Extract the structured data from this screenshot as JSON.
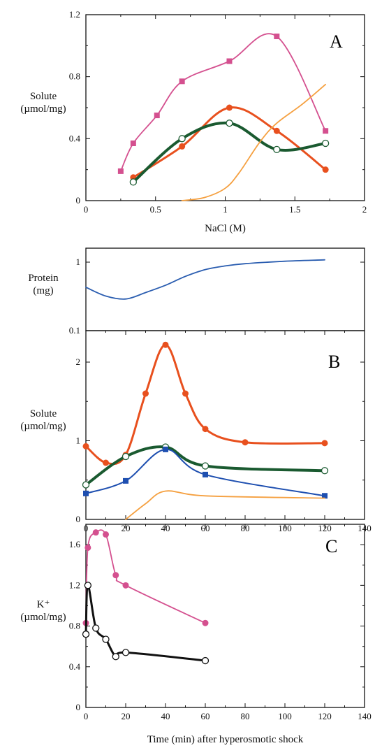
{
  "chart_data": [
    {
      "panel": "A",
      "type": "line",
      "ylabel": [
        "Solute",
        "(µmol/mg)"
      ],
      "xlabel": "NaCl (M)",
      "xlim": [
        0,
        2
      ],
      "ylim": [
        0,
        1.2
      ],
      "xticks": [
        "0",
        "0.5",
        "1",
        "1.5",
        "2"
      ],
      "yticks": [
        "0",
        "0.4",
        "0.8",
        "1.2"
      ],
      "series": [
        {
          "color": "#d4508f",
          "marker": "square",
          "width": 1.8,
          "x": [
            0.25,
            0.34,
            0.51,
            0.69,
            1.03,
            1.37,
            1.72
          ],
          "y": [
            0.19,
            0.37,
            0.55,
            0.77,
            0.9,
            1.06,
            0.45
          ]
        },
        {
          "color": "#e8501e",
          "marker": "circle",
          "width": 3,
          "x": [
            0.34,
            0.69,
            1.03,
            1.37,
            1.72
          ],
          "y": [
            0.15,
            0.35,
            0.6,
            0.45,
            0.2
          ]
        },
        {
          "color": "#1a5a30",
          "marker": "open-circle",
          "width": 4,
          "x": [
            0.34,
            0.69,
            1.03,
            1.37,
            1.72
          ],
          "y": [
            0.12,
            0.4,
            0.5,
            0.33,
            0.37
          ]
        },
        {
          "color": "#f5a040",
          "marker": "none",
          "width": 1.8,
          "x": [
            0.69,
            0.85,
            1.0,
            1.1,
            1.25,
            1.37,
            1.55,
            1.72
          ],
          "y": [
            0.0,
            0.02,
            0.08,
            0.18,
            0.38,
            0.5,
            0.62,
            0.75
          ]
        }
      ]
    },
    {
      "panel": "Protein",
      "type": "line",
      "ylabel": [
        "Protein",
        "(mg)"
      ],
      "yscale": "log",
      "ylim": [
        0.1,
        1.6
      ],
      "xlim": [
        0,
        140
      ],
      "yticks": [
        "0.1",
        "1"
      ],
      "series": [
        {
          "color": "#2a5db0",
          "marker": "none",
          "width": 1.8,
          "x": [
            0,
            10,
            20,
            30,
            40,
            50,
            60,
            70,
            80,
            100,
            120
          ],
          "y": [
            0.43,
            0.32,
            0.29,
            0.36,
            0.46,
            0.62,
            0.78,
            0.88,
            0.95,
            1.03,
            1.08
          ]
        }
      ]
    },
    {
      "panel": "B",
      "type": "line",
      "ylabel": [
        "Solute",
        "(µmol/mg)"
      ],
      "xlim": [
        0,
        140
      ],
      "ylim": [
        0,
        2.4
      ],
      "xticks": [
        "0",
        "20",
        "40",
        "60",
        "80",
        "100",
        "120",
        "140"
      ],
      "yticks": [
        "0",
        "1",
        "2"
      ],
      "series": [
        {
          "color": "#e8501e",
          "marker": "circle",
          "width": 3,
          "x": [
            0,
            10,
            20,
            30,
            40,
            50,
            60,
            80,
            120
          ],
          "y": [
            0.93,
            0.72,
            0.82,
            1.6,
            2.22,
            1.6,
            1.15,
            0.98,
            0.97
          ]
        },
        {
          "color": "#1a5a30",
          "marker": "open-circle",
          "width": 4,
          "x": [
            0,
            20,
            40,
            60,
            120
          ],
          "y": [
            0.44,
            0.8,
            0.92,
            0.68,
            0.62
          ]
        },
        {
          "color": "#1e4fb0",
          "marker": "square",
          "width": 2,
          "x": [
            0,
            20,
            40,
            60,
            120
          ],
          "y": [
            0.33,
            0.49,
            0.89,
            0.57,
            0.3
          ]
        },
        {
          "color": "#f5a040",
          "marker": "none",
          "width": 1.8,
          "x": [
            20,
            30,
            40,
            60,
            120
          ],
          "y": [
            0.0,
            0.2,
            0.36,
            0.3,
            0.27
          ]
        }
      ]
    },
    {
      "panel": "C",
      "type": "line",
      "ylabel": [
        "K⁺",
        "(µmol/mg)"
      ],
      "xlabel": "Time (min) after hyperosmotic shock",
      "xlim": [
        0,
        140
      ],
      "ylim": [
        0,
        1.8
      ],
      "xticks": [
        "0",
        "20",
        "40",
        "60",
        "80",
        "100",
        "120",
        "140"
      ],
      "yticks": [
        "0",
        "0.4",
        "0.8",
        "1.2",
        "1.6"
      ],
      "series": [
        {
          "color": "#d4508f",
          "marker": "circle",
          "width": 1.8,
          "x": [
            0,
            1,
            5,
            10,
            15,
            20,
            60
          ],
          "y": [
            0.83,
            1.57,
            1.72,
            1.7,
            1.3,
            1.2,
            0.83
          ]
        },
        {
          "color": "#111111",
          "marker": "open-circle",
          "width": 3,
          "x": [
            0,
            1,
            5,
            10,
            15,
            20,
            60
          ],
          "y": [
            0.72,
            1.2,
            0.78,
            0.67,
            0.5,
            0.54,
            0.46
          ]
        }
      ]
    }
  ],
  "labels": {
    "panel_a": "A",
    "panel_b": "B",
    "panel_c": "C"
  }
}
